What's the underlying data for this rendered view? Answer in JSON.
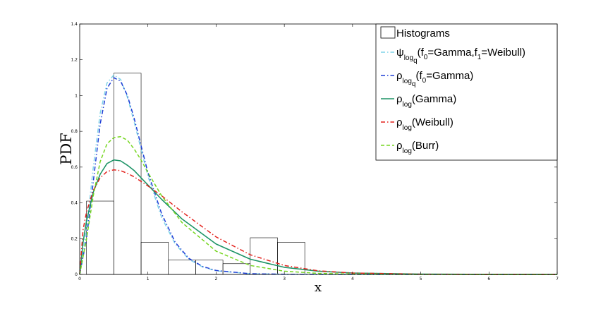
{
  "chart_data": {
    "type": "line",
    "xlabel": "x",
    "ylabel": "PDF",
    "xlim": [
      0,
      7
    ],
    "ylim": [
      0,
      1.4
    ],
    "xticks": [
      0,
      1,
      2,
      3,
      4,
      5,
      6,
      7
    ],
    "yticks": [
      0,
      0.2,
      0.4,
      0.6,
      0.8,
      1,
      1.2,
      1.4
    ],
    "grid": false,
    "legend_position": "top-right",
    "histogram": {
      "name": "Histograms",
      "bin_edges": [
        0.1,
        0.5,
        0.9,
        1.3,
        1.7,
        2.1,
        2.5,
        2.9,
        3.3
      ],
      "values": [
        0.41,
        1.125,
        0.18,
        0.08,
        0.08,
        0.06,
        0.205,
        0.18
      ]
    },
    "series": [
      {
        "name": "ψlogq(f0=Gamma,f1=Weibull)",
        "legend": {
          "sym": "ψ",
          "sub": "log",
          "subsub": "q",
          "rest": [
            [
              "(f",
              ""
            ],
            [
              "0",
              "sub"
            ],
            [
              "=Gamma,f",
              ""
            ],
            [
              "1",
              "sub"
            ],
            [
              "=Weibull)",
              ""
            ]
          ]
        },
        "color": "#7fd3e8",
        "style": "dashdot",
        "x": [
          0,
          0.1,
          0.2,
          0.3,
          0.4,
          0.5,
          0.6,
          0.7,
          0.8,
          0.9,
          1.0,
          1.2,
          1.4,
          1.6,
          1.8,
          2.0,
          2.5,
          3.0,
          4.0,
          5.0,
          7.0
        ],
        "y": [
          0,
          0.25,
          0.6,
          0.9,
          1.07,
          1.115,
          1.09,
          0.99,
          0.85,
          0.7,
          0.55,
          0.32,
          0.17,
          0.085,
          0.042,
          0.02,
          0.004,
          0.001,
          0,
          0,
          0
        ]
      },
      {
        "name": "ρlogq(f0=Gamma)",
        "legend": {
          "sym": "ρ",
          "sub": "log",
          "subsub": "q",
          "rest": [
            [
              "(f",
              ""
            ],
            [
              "0",
              "sub"
            ],
            [
              "=Gamma)",
              ""
            ]
          ]
        },
        "color": "#1f3fd6",
        "style": "dashdot",
        "x": [
          0,
          0.1,
          0.2,
          0.3,
          0.4,
          0.5,
          0.6,
          0.7,
          0.8,
          0.9,
          1.0,
          1.2,
          1.4,
          1.6,
          1.8,
          2.0,
          2.5,
          3.0,
          4.0,
          5.0,
          7.0
        ],
        "y": [
          0,
          0.2,
          0.52,
          0.84,
          1.04,
          1.1,
          1.08,
          1.0,
          0.87,
          0.72,
          0.57,
          0.34,
          0.18,
          0.09,
          0.045,
          0.022,
          0.004,
          0.001,
          0,
          0,
          0
        ]
      },
      {
        "name": "ρlog(Gamma)",
        "legend": {
          "sym": "ρ",
          "sub": "log",
          "subsub": "",
          "rest": [
            [
              "(Gamma)",
              ""
            ]
          ]
        },
        "color": "#1e9467",
        "style": "solid",
        "x": [
          0,
          0.05,
          0.1,
          0.2,
          0.3,
          0.4,
          0.5,
          0.6,
          0.7,
          0.8,
          1.0,
          1.2,
          1.5,
          2.0,
          2.5,
          3.0,
          3.5,
          4.0,
          5.0,
          6.0,
          7.0
        ],
        "y": [
          0,
          0.18,
          0.3,
          0.46,
          0.56,
          0.62,
          0.64,
          0.635,
          0.61,
          0.58,
          0.5,
          0.42,
          0.31,
          0.17,
          0.085,
          0.04,
          0.018,
          0.008,
          0.0015,
          0.0003,
          0
        ],
        "stroke": 1.6
      },
      {
        "name": "ρlog(Weibull)",
        "legend": {
          "sym": "ρ",
          "sub": "log",
          "subsub": "",
          "rest": [
            [
              "(Weibull)",
              ""
            ]
          ]
        },
        "color": "#e3221d",
        "style": "dashdot",
        "x": [
          0,
          0.05,
          0.1,
          0.2,
          0.3,
          0.4,
          0.5,
          0.6,
          0.7,
          0.8,
          1.0,
          1.2,
          1.5,
          2.0,
          2.5,
          3.0,
          3.5,
          4.0,
          5.0,
          6.0,
          7.0
        ],
        "y": [
          0,
          0.25,
          0.35,
          0.47,
          0.54,
          0.575,
          0.585,
          0.58,
          0.565,
          0.545,
          0.495,
          0.44,
          0.35,
          0.21,
          0.11,
          0.05,
          0.02,
          0.008,
          0.001,
          0,
          0
        ]
      },
      {
        "name": "ρlog(Burr)",
        "legend": {
          "sym": "ρ",
          "sub": "log",
          "subsub": "",
          "rest": [
            [
              "(Burr)",
              ""
            ]
          ]
        },
        "color": "#76d621",
        "style": "dashed",
        "x": [
          0,
          0.1,
          0.2,
          0.3,
          0.4,
          0.5,
          0.6,
          0.7,
          0.8,
          0.9,
          1.0,
          1.2,
          1.5,
          2.0,
          2.5,
          3.0,
          3.5,
          4.0,
          5.0,
          7.0
        ],
        "y": [
          0,
          0.2,
          0.44,
          0.63,
          0.73,
          0.765,
          0.77,
          0.75,
          0.7,
          0.64,
          0.57,
          0.44,
          0.29,
          0.13,
          0.05,
          0.018,
          0.006,
          0.002,
          0,
          0
        ]
      }
    ]
  }
}
